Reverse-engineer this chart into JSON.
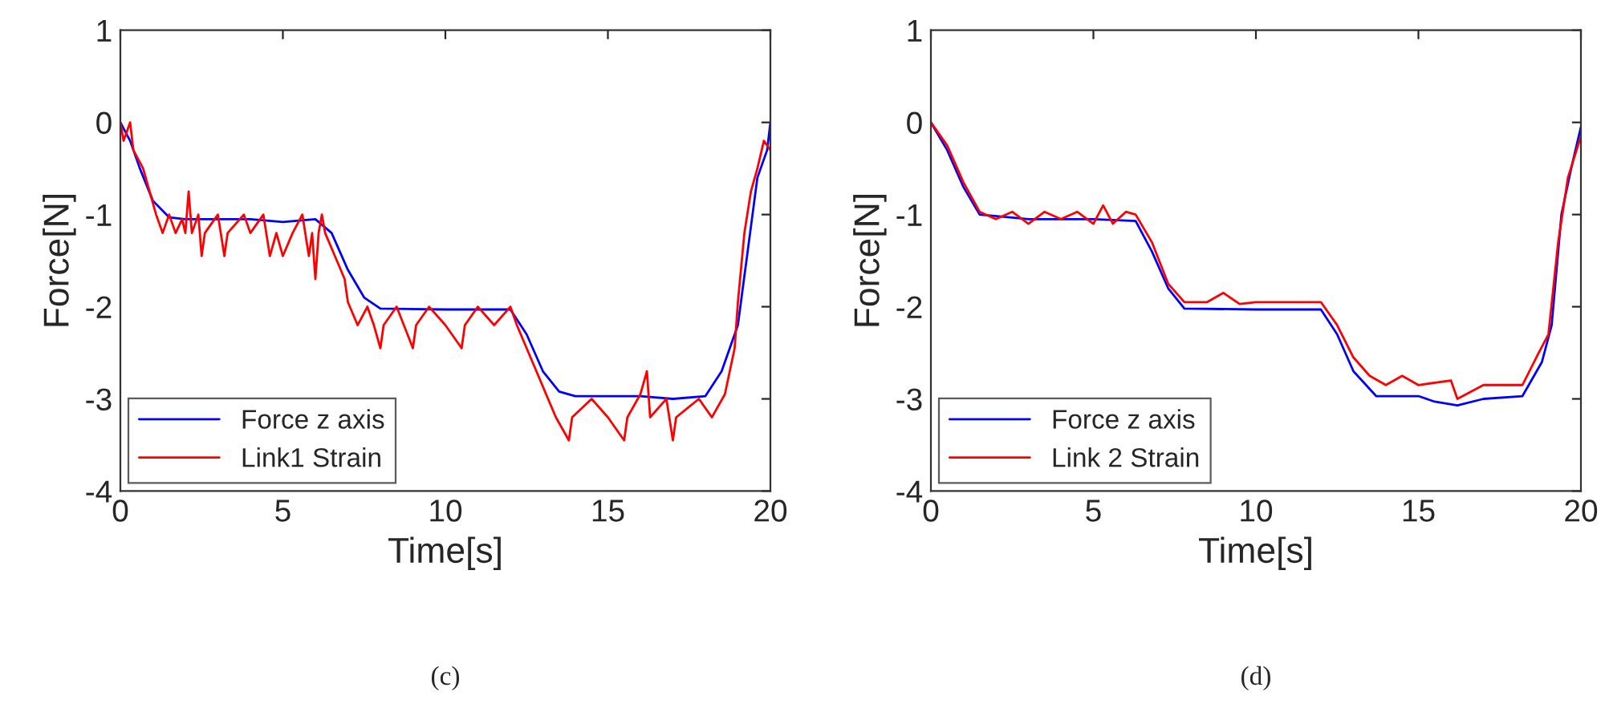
{
  "chart_data": [
    {
      "type": "line",
      "xlabel": "Time[s]",
      "ylabel": "Force[N]",
      "xlim": [
        0,
        20
      ],
      "ylim": [
        -4,
        1
      ],
      "xticks": [
        0,
        5,
        10,
        15,
        20
      ],
      "yticks": [
        -4,
        -3,
        -2,
        -1,
        0,
        1
      ],
      "legend": "bottom left",
      "grid": false,
      "annotations": [
        "(c)"
      ],
      "series": [
        {
          "name": "Force z axis",
          "color": "#0000ff",
          "x": [
            0,
            0.3,
            0.6,
            1.0,
            1.5,
            2,
            3,
            4,
            5,
            6,
            6.5,
            7,
            7.5,
            8,
            10,
            12,
            12.5,
            13,
            13.5,
            14,
            16,
            17,
            18,
            18.5,
            19,
            19.3,
            19.6,
            19.9,
            20
          ],
          "values": [
            0,
            -0.2,
            -0.5,
            -0.85,
            -1.03,
            -1.05,
            -1.05,
            -1.05,
            -1.08,
            -1.05,
            -1.2,
            -1.6,
            -1.9,
            -2.02,
            -2.03,
            -2.03,
            -2.3,
            -2.7,
            -2.92,
            -2.97,
            -2.97,
            -3.0,
            -2.97,
            -2.7,
            -2.2,
            -1.4,
            -0.6,
            -0.3,
            0
          ]
        },
        {
          "name": "Link1 Strain",
          "color": "#ff0000",
          "x": [
            0,
            0.1,
            0.3,
            0.4,
            0.7,
            0.9,
            1.1,
            1.3,
            1.5,
            1.7,
            1.9,
            2.0,
            2.1,
            2.2,
            2.4,
            2.5,
            2.6,
            3.0,
            3.2,
            3.3,
            3.8,
            4.0,
            4.4,
            4.6,
            4.8,
            5.0,
            5.3,
            5.6,
            5.8,
            5.9,
            6.0,
            6.1,
            6.2,
            6.3,
            6.6,
            6.9,
            7.0,
            7.3,
            7.6,
            7.8,
            8.0,
            8.1,
            8.5,
            9.0,
            9.1,
            9.5,
            10.0,
            10.5,
            10.6,
            11.0,
            11.5,
            12.0,
            12.2,
            12.5,
            12.8,
            13.1,
            13.4,
            13.8,
            13.9,
            14.5,
            15.0,
            15.5,
            15.6,
            16.0,
            16.2,
            16.3,
            16.8,
            17.0,
            17.1,
            17.8,
            18.2,
            18.6,
            18.9,
            19.0,
            19.2,
            19.4,
            19.6,
            19.8,
            20
          ],
          "values": [
            0,
            -0.2,
            0,
            -0.3,
            -0.5,
            -0.75,
            -1.0,
            -1.2,
            -1.0,
            -1.2,
            -1.05,
            -1.2,
            -0.75,
            -1.2,
            -1.0,
            -1.45,
            -1.2,
            -1.0,
            -1.45,
            -1.2,
            -1.0,
            -1.2,
            -1.0,
            -1.45,
            -1.2,
            -1.45,
            -1.2,
            -1.0,
            -1.45,
            -1.2,
            -1.7,
            -1.2,
            -1.0,
            -1.2,
            -1.45,
            -1.7,
            -1.95,
            -2.2,
            -2.0,
            -2.2,
            -2.45,
            -2.2,
            -2.0,
            -2.45,
            -2.2,
            -2.0,
            -2.2,
            -2.45,
            -2.2,
            -2.0,
            -2.2,
            -2.0,
            -2.2,
            -2.45,
            -2.7,
            -2.95,
            -3.2,
            -3.45,
            -3.2,
            -3.0,
            -3.2,
            -3.45,
            -3.2,
            -2.95,
            -2.7,
            -3.2,
            -3.0,
            -3.45,
            -3.2,
            -3.0,
            -3.2,
            -2.95,
            -2.45,
            -1.95,
            -1.2,
            -0.75,
            -0.5,
            -0.2,
            -0.3
          ]
        }
      ]
    },
    {
      "type": "line",
      "xlabel": "Time[s]",
      "ylabel": "Force[N]",
      "xlim": [
        0,
        20
      ],
      "ylim": [
        -4,
        1
      ],
      "xticks": [
        0,
        5,
        10,
        15,
        20
      ],
      "yticks": [
        -4,
        -3,
        -2,
        -1,
        0,
        1
      ],
      "legend": "bottom left",
      "grid": false,
      "annotations": [
        "(d)"
      ],
      "series": [
        {
          "name": "Force z axis",
          "color": "#0000ff",
          "x": [
            0,
            0.5,
            1.0,
            1.5,
            3,
            5,
            6.3,
            6.8,
            7.3,
            7.8,
            10,
            12,
            12.5,
            13,
            13.7,
            15,
            15.5,
            16.2,
            17,
            18.2,
            18.8,
            19.1,
            19.4,
            19.7,
            20
          ],
          "values": [
            0,
            -0.3,
            -0.7,
            -1.0,
            -1.05,
            -1.05,
            -1.07,
            -1.4,
            -1.8,
            -2.02,
            -2.03,
            -2.03,
            -2.3,
            -2.7,
            -2.97,
            -2.97,
            -3.03,
            -3.07,
            -3.0,
            -2.97,
            -2.6,
            -2.2,
            -1.0,
            -0.5,
            -0.05
          ]
        },
        {
          "name": "Link 2 Strain",
          "color": "#ff0000",
          "x": [
            0,
            0.5,
            1.0,
            1.5,
            2,
            2.5,
            3,
            3.5,
            4,
            4.5,
            5,
            5.3,
            5.6,
            6,
            6.3,
            6.8,
            7.3,
            7.8,
            8.5,
            9,
            9.5,
            10,
            11,
            12,
            12.5,
            13,
            13.5,
            14,
            14.5,
            15,
            16,
            16.2,
            17,
            18.2,
            18.7,
            19,
            19.3,
            19.6,
            20
          ],
          "values": [
            0,
            -0.25,
            -0.65,
            -0.97,
            -1.05,
            -0.97,
            -1.1,
            -0.97,
            -1.05,
            -0.97,
            -1.1,
            -0.9,
            -1.1,
            -0.97,
            -1.0,
            -1.3,
            -1.75,
            -1.95,
            -1.95,
            -1.85,
            -1.97,
            -1.95,
            -1.95,
            -1.95,
            -2.2,
            -2.55,
            -2.75,
            -2.85,
            -2.75,
            -2.85,
            -2.8,
            -3.0,
            -2.85,
            -2.85,
            -2.5,
            -2.3,
            -1.3,
            -0.6,
            -0.15
          ]
        }
      ]
    }
  ]
}
